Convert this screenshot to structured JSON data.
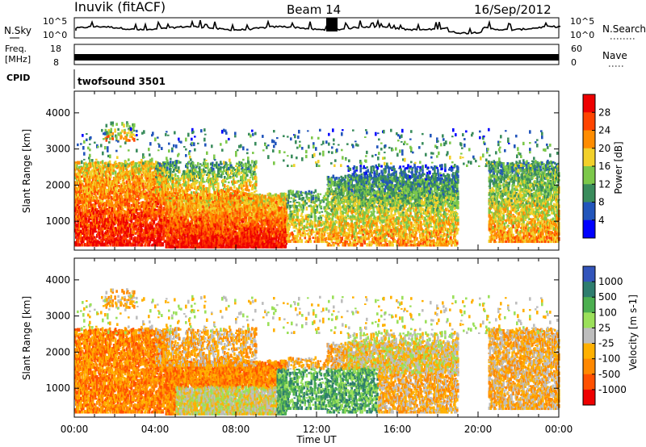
{
  "header": {
    "station": "Inuvik (fitACF)",
    "beam": "Beam 14",
    "date": "16/Sep/2012"
  },
  "nsky_panel": {
    "left_label": "N.Sky",
    "right_label": "N.Search",
    "left_ticks": [
      "10^5",
      "10^0"
    ],
    "right_ticks": [
      "10^5",
      "10^0"
    ]
  },
  "freq_panel": {
    "left_label_line1": "Freq.",
    "left_label_line2": "[MHz]",
    "left_ticks": [
      "18",
      "8"
    ],
    "right_ticks": [
      "60",
      "0"
    ],
    "right_label": "Nave",
    "cpid_label": "CPID",
    "cpid_value": "twofsound 3501"
  },
  "colors": {
    "power": [
      "#0000ff",
      "#2255bb",
      "#3a8c5c",
      "#7cc84a",
      "#f2d02a",
      "#ff8c00",
      "#ff4400",
      "#ee0000"
    ],
    "velocity": [
      "#3355bb",
      "#2e7d6e",
      "#4caf50",
      "#9be05a",
      "#bdbdbd",
      "#ffb000",
      "#ff8800",
      "#ff5000",
      "#ee0000"
    ]
  },
  "chart_data": [
    {
      "type": "heatmap",
      "ylabel": "Slant Range [km]",
      "xlabel": "",
      "yticks": [
        "1000",
        "2000",
        "3000",
        "4000"
      ],
      "ylim": [
        200,
        4600
      ],
      "xlim_hours": [
        0,
        24
      ],
      "colorbar": {
        "label": "Power [dB]",
        "ticks": [
          "4",
          "8",
          "12",
          "16",
          "20",
          "24",
          "28"
        ]
      }
    },
    {
      "type": "heatmap",
      "ylabel": "Slant Range [km]",
      "xlabel": "Time UT",
      "xticks": [
        "00:00",
        "04:00",
        "08:00",
        "12:00",
        "16:00",
        "20:00",
        "00:00"
      ],
      "yticks": [
        "1000",
        "2000",
        "3000",
        "4000"
      ],
      "ylim": [
        200,
        4600
      ],
      "xlim_hours": [
        0,
        24
      ],
      "colorbar": {
        "label": "Velocity [m s-1]",
        "ticks": [
          "1000",
          "500",
          "100",
          "25",
          "-25",
          "-100",
          "-500",
          "-1000"
        ]
      }
    }
  ]
}
